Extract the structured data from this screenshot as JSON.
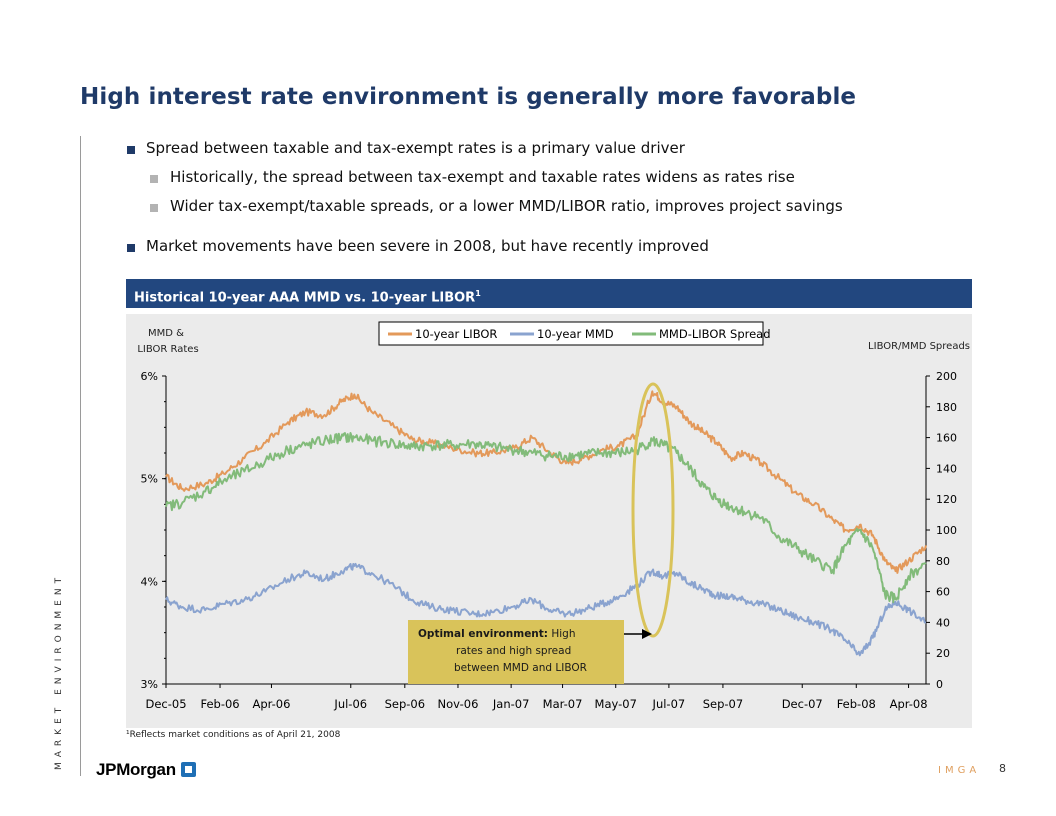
{
  "title": "High interest rate environment is generally more favorable",
  "side_label": "MARKET ENVIRONMENT",
  "bullets": {
    "b1": "Spread between taxable and tax-exempt rates is a primary value driver",
    "b1a": "Historically, the spread between tax-exempt and taxable rates widens as rates rise",
    "b1b": "Wider tax-exempt/taxable spreads, or a lower MMD/LIBOR ratio, improves project savings",
    "b2": "Market movements have been severe in 2008, but have recently improved"
  },
  "chart_header": "Historical 10-year AAA MMD vs. 10-year LIBOR",
  "chart_header_sup": "1",
  "footnote": "¹Reflects market conditions as of April 21, 2008",
  "logo_text": "JPMorgan",
  "footer_org": "IMGA",
  "page_number": "8",
  "colors": {
    "libor": "#e3995a",
    "mmd": "#8aa3cf",
    "spread": "#82bb7a",
    "highlight": "#d9c35a",
    "header": "#22477f"
  },
  "chart_data": {
    "type": "line",
    "left_axis_label_line1": "MMD &",
    "left_axis_label_line2": "LIBOR Rates",
    "right_axis_label": "LIBOR/MMD Spreads",
    "y_left_ticks": [
      "6%",
      "5%",
      "4%",
      "3%"
    ],
    "y_left_range": [
      3,
      6
    ],
    "y_right_ticks": [
      "200",
      "180",
      "160",
      "140",
      "120",
      "100",
      "80",
      "60",
      "40",
      "20",
      "0"
    ],
    "y_right_range": [
      0,
      200
    ],
    "x_ticks": [
      "Dec-05",
      "Feb-06",
      "Apr-06",
      "Jul-06",
      "Sep-06",
      "Nov-06",
      "Jan-07",
      "Mar-07",
      "May-07",
      "Jul-07",
      "Sep-07",
      "Dec-07",
      "Feb-08",
      "Apr-08"
    ],
    "x_range": [
      "2005-12-01",
      "2008-04-21"
    ],
    "legend": [
      "10-year LIBOR",
      "10-year MMD",
      "MMD-LIBOR Spread"
    ],
    "annotation": {
      "line1_bold": "Optimal environment:",
      "line1_rest": " High",
      "line2": "rates and high spread",
      "line3": "between MMD and LIBOR"
    },
    "series": [
      {
        "name": "10-year LIBOR",
        "axis": "left",
        "x": [
          "2005-12-01",
          "2005-12-20",
          "2006-01-15",
          "2006-02-05",
          "2006-03-01",
          "2006-03-25",
          "2006-04-20",
          "2006-05-10",
          "2006-06-01",
          "2006-06-20",
          "2006-07-05",
          "2006-07-25",
          "2006-08-20",
          "2006-09-10",
          "2006-10-01",
          "2006-10-25",
          "2006-11-20",
          "2006-12-10",
          "2007-01-05",
          "2007-01-25",
          "2007-02-15",
          "2007-03-05",
          "2007-03-25",
          "2007-04-15",
          "2007-05-05",
          "2007-05-25",
          "2007-06-12",
          "2007-06-25",
          "2007-07-10",
          "2007-07-25",
          "2007-08-10",
          "2007-08-25",
          "2007-09-10",
          "2007-09-25",
          "2007-10-15",
          "2007-11-05",
          "2007-11-25",
          "2007-12-15",
          "2008-01-05",
          "2008-01-20",
          "2008-02-05",
          "2008-02-20",
          "2008-03-05",
          "2008-03-17",
          "2008-04-01",
          "2008-04-21"
        ],
        "values": [
          5.02,
          4.9,
          4.95,
          5.05,
          5.2,
          5.35,
          5.55,
          5.65,
          5.62,
          5.75,
          5.82,
          5.65,
          5.5,
          5.38,
          5.35,
          5.3,
          5.25,
          5.25,
          5.3,
          5.4,
          5.25,
          5.15,
          5.2,
          5.28,
          5.32,
          5.42,
          5.85,
          5.75,
          5.7,
          5.55,
          5.45,
          5.35,
          5.2,
          5.25,
          5.15,
          5.0,
          4.85,
          4.75,
          4.6,
          4.5,
          4.55,
          4.45,
          4.2,
          4.1,
          4.2,
          4.35
        ]
      },
      {
        "name": "10-year MMD",
        "axis": "left",
        "x": [
          "2005-12-01",
          "2005-12-20",
          "2006-01-15",
          "2006-02-05",
          "2006-03-01",
          "2006-03-25",
          "2006-04-20",
          "2006-05-10",
          "2006-06-01",
          "2006-06-20",
          "2006-07-05",
          "2006-07-25",
          "2006-08-20",
          "2006-09-10",
          "2006-10-01",
          "2006-10-25",
          "2006-11-20",
          "2006-12-10",
          "2007-01-05",
          "2007-01-25",
          "2007-02-15",
          "2007-03-05",
          "2007-03-25",
          "2007-04-15",
          "2007-05-05",
          "2007-05-25",
          "2007-06-12",
          "2007-06-25",
          "2007-07-10",
          "2007-07-25",
          "2007-08-10",
          "2007-08-25",
          "2007-09-10",
          "2007-09-25",
          "2007-10-15",
          "2007-11-05",
          "2007-11-25",
          "2007-12-15",
          "2008-01-05",
          "2008-01-20",
          "2008-02-05",
          "2008-02-20",
          "2008-03-05",
          "2008-03-17",
          "2008-04-01",
          "2008-04-21"
        ],
        "values": [
          3.82,
          3.75,
          3.72,
          3.78,
          3.82,
          3.9,
          4.02,
          4.08,
          4.02,
          4.1,
          4.15,
          4.08,
          3.95,
          3.82,
          3.75,
          3.72,
          3.68,
          3.7,
          3.76,
          3.82,
          3.72,
          3.68,
          3.72,
          3.78,
          3.85,
          3.96,
          4.1,
          4.05,
          4.08,
          3.98,
          3.92,
          3.86,
          3.85,
          3.82,
          3.78,
          3.72,
          3.65,
          3.6,
          3.52,
          3.42,
          3.28,
          3.45,
          3.72,
          3.8,
          3.72,
          3.6
        ]
      },
      {
        "name": "MMD-LIBOR Spread",
        "axis": "right",
        "x": [
          "2005-12-01",
          "2005-12-20",
          "2006-01-15",
          "2006-02-05",
          "2006-03-01",
          "2006-03-25",
          "2006-04-20",
          "2006-05-10",
          "2006-06-01",
          "2006-06-20",
          "2006-07-05",
          "2006-07-25",
          "2006-08-20",
          "2006-09-10",
          "2006-10-01",
          "2006-10-25",
          "2006-11-20",
          "2006-12-10",
          "2007-01-05",
          "2007-01-25",
          "2007-02-15",
          "2007-03-05",
          "2007-03-25",
          "2007-04-15",
          "2007-05-05",
          "2007-05-25",
          "2007-06-12",
          "2007-06-25",
          "2007-07-10",
          "2007-07-25",
          "2007-08-10",
          "2007-08-25",
          "2007-09-10",
          "2007-09-25",
          "2007-10-15",
          "2007-11-05",
          "2007-11-25",
          "2007-12-15",
          "2008-01-05",
          "2008-01-20",
          "2008-02-05",
          "2008-02-20",
          "2008-03-05",
          "2008-03-17",
          "2008-04-01",
          "2008-04-21"
        ],
        "values": [
          115,
          118,
          125,
          132,
          138,
          145,
          152,
          155,
          158,
          160,
          160,
          158,
          156,
          154,
          155,
          155,
          156,
          154,
          152,
          150,
          148,
          148,
          149,
          150,
          150,
          152,
          158,
          155,
          150,
          140,
          128,
          120,
          115,
          112,
          108,
          95,
          88,
          80,
          74,
          90,
          100,
          88,
          58,
          55,
          70,
          78
        ]
      }
    ]
  }
}
